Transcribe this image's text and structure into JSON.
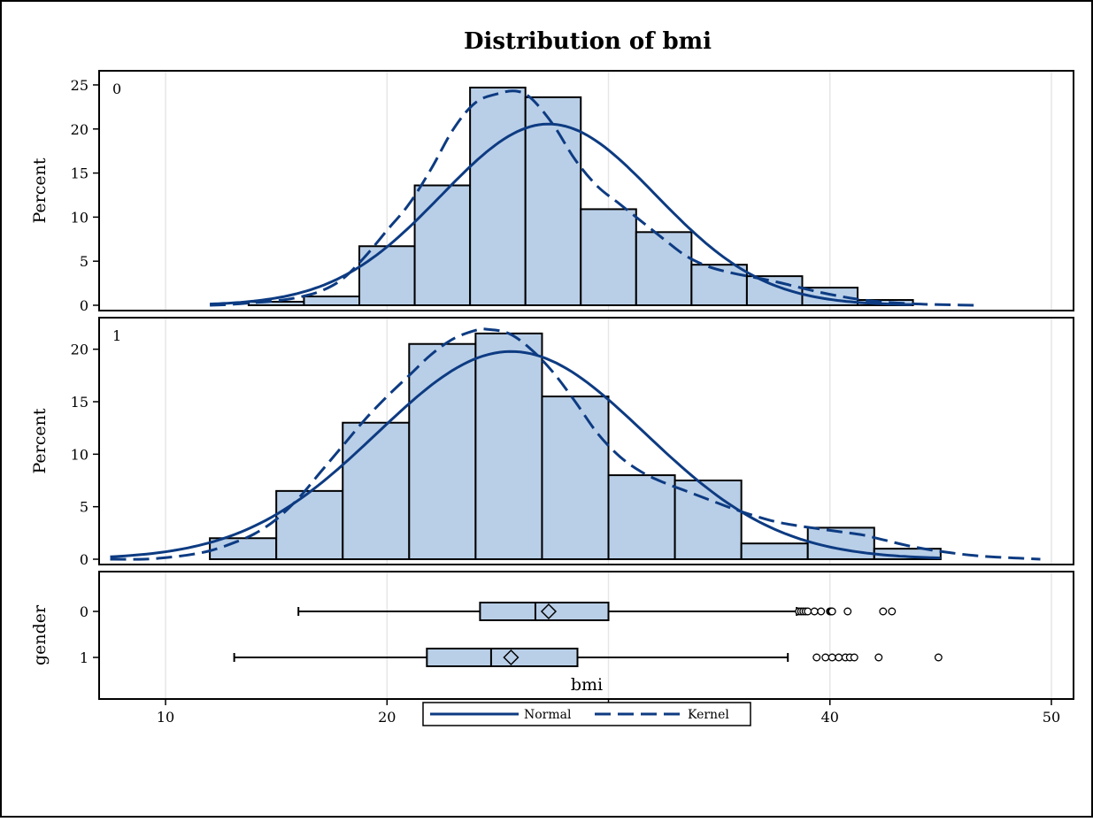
{
  "chart_data": {
    "type": "histogram",
    "title": "Distribution of bmi",
    "xlabel": "bmi",
    "xlim": [
      7,
      51
    ],
    "xticks": [
      10,
      20,
      30,
      40,
      50
    ],
    "colors": {
      "bar_fill": "#b9cfe8",
      "bar_edge": "#000000",
      "curve": "#0d3b82",
      "grid": "#e6e6e6"
    },
    "panels": [
      {
        "label": "0",
        "ylabel": "Percent",
        "ylim": [
          0,
          26
        ],
        "yticks": [
          0,
          5,
          10,
          15,
          20,
          25
        ],
        "bins": [
          {
            "x0": 13.75,
            "x1": 16.25,
            "value": 0.4
          },
          {
            "x0": 16.25,
            "x1": 18.75,
            "value": 1.0
          },
          {
            "x0": 18.75,
            "x1": 21.25,
            "value": 6.7
          },
          {
            "x0": 21.25,
            "x1": 23.75,
            "value": 13.6
          },
          {
            "x0": 23.75,
            "x1": 26.25,
            "value": 24.7
          },
          {
            "x0": 26.25,
            "x1": 28.75,
            "value": 23.6
          },
          {
            "x0": 28.75,
            "x1": 31.25,
            "value": 10.9
          },
          {
            "x0": 31.25,
            "x1": 33.75,
            "value": 8.3
          },
          {
            "x0": 33.75,
            "x1": 36.25,
            "value": 4.6
          },
          {
            "x0": 36.25,
            "x1": 38.75,
            "value": 3.3
          },
          {
            "x0": 38.75,
            "x1": 41.25,
            "value": 2.0
          },
          {
            "x0": 41.25,
            "x1": 43.75,
            "value": 0.6
          }
        ],
        "normal": {
          "mean": 27.3,
          "sd": 4.85,
          "bin_width": 2.5,
          "x_range": [
            12,
            43.7
          ]
        },
        "kernel": [
          [
            12,
            0
          ],
          [
            13,
            0.1
          ],
          [
            14,
            0.3
          ],
          [
            15,
            0.5
          ],
          [
            16,
            0.9
          ],
          [
            17,
            1.6
          ],
          [
            18,
            3.0
          ],
          [
            19,
            5.5
          ],
          [
            20,
            8.5
          ],
          [
            21,
            11.5
          ],
          [
            22,
            15.5
          ],
          [
            23,
            20.0
          ],
          [
            24,
            23.0
          ],
          [
            25,
            24.0
          ],
          [
            25.8,
            24.3
          ],
          [
            26.5,
            23.5
          ],
          [
            27.5,
            20.5
          ],
          [
            28.5,
            16.5
          ],
          [
            29.5,
            13.5
          ],
          [
            30.5,
            11.5
          ],
          [
            31.5,
            9.5
          ],
          [
            32.5,
            7.5
          ],
          [
            33.5,
            5.6
          ],
          [
            34.5,
            4.4
          ],
          [
            35.5,
            3.7
          ],
          [
            36.5,
            3.2
          ],
          [
            37.5,
            2.7
          ],
          [
            38.5,
            2.1
          ],
          [
            39.5,
            1.5
          ],
          [
            40.5,
            1.0
          ],
          [
            41.5,
            0.6
          ],
          [
            42.5,
            0.35
          ],
          [
            43.5,
            0.2
          ],
          [
            44.5,
            0.1
          ],
          [
            45.5,
            0.05
          ],
          [
            46.5,
            0
          ]
        ]
      },
      {
        "label": "1",
        "ylabel": "Percent",
        "ylim": [
          0,
          22.5
        ],
        "yticks": [
          0,
          5,
          10,
          15,
          20
        ],
        "bins": [
          {
            "x0": 12,
            "x1": 15,
            "value": 2.0
          },
          {
            "x0": 15,
            "x1": 18,
            "value": 6.5
          },
          {
            "x0": 18,
            "x1": 21,
            "value": 13.0
          },
          {
            "x0": 21,
            "x1": 24,
            "value": 20.5
          },
          {
            "x0": 24,
            "x1": 27,
            "value": 21.5
          },
          {
            "x0": 27,
            "x1": 30,
            "value": 15.5
          },
          {
            "x0": 30,
            "x1": 33,
            "value": 8.0
          },
          {
            "x0": 33,
            "x1": 36,
            "value": 7.5
          },
          {
            "x0": 36,
            "x1": 39,
            "value": 1.5
          },
          {
            "x0": 39,
            "x1": 42,
            "value": 3.0
          },
          {
            "x0": 42,
            "x1": 45,
            "value": 1.0
          }
        ],
        "normal": {
          "mean": 25.6,
          "sd": 6.05,
          "bin_width": 3.0,
          "x_range": [
            7.5,
            45
          ]
        },
        "kernel": [
          [
            7.5,
            0
          ],
          [
            9,
            0
          ],
          [
            10,
            0.15
          ],
          [
            11,
            0.4
          ],
          [
            12,
            0.8
          ],
          [
            13,
            1.5
          ],
          [
            14,
            2.4
          ],
          [
            15,
            3.8
          ],
          [
            16,
            5.8
          ],
          [
            17,
            8.3
          ],
          [
            18,
            10.8
          ],
          [
            19,
            13.3
          ],
          [
            20,
            15.5
          ],
          [
            21,
            17.5
          ],
          [
            22,
            19.5
          ],
          [
            23,
            21.0
          ],
          [
            24,
            21.8
          ],
          [
            24.5,
            21.9
          ],
          [
            25.5,
            21.5
          ],
          [
            26.5,
            20.0
          ],
          [
            27.5,
            17.8
          ],
          [
            28.5,
            15.0
          ],
          [
            29.5,
            12.0
          ],
          [
            30.5,
            9.8
          ],
          [
            31.5,
            8.3
          ],
          [
            32.5,
            7.3
          ],
          [
            33.5,
            6.5
          ],
          [
            34.5,
            5.7
          ],
          [
            35.5,
            4.9
          ],
          [
            36.5,
            4.2
          ],
          [
            37.5,
            3.6
          ],
          [
            38.5,
            3.2
          ],
          [
            39.5,
            2.9
          ],
          [
            40.5,
            2.6
          ],
          [
            41.5,
            2.3
          ],
          [
            42.5,
            1.8
          ],
          [
            43.5,
            1.3
          ],
          [
            44.5,
            0.9
          ],
          [
            45.5,
            0.6
          ],
          [
            46.5,
            0.35
          ],
          [
            47.5,
            0.2
          ],
          [
            48.5,
            0.1
          ],
          [
            49.5,
            0
          ]
        ]
      }
    ],
    "boxplot": {
      "ylabel": "gender",
      "categories": [
        {
          "label": "0",
          "whisker_low": 16.0,
          "q1": 24.2,
          "median": 26.7,
          "q3": 30.0,
          "whisker_high": 38.5,
          "mean": 27.3,
          "outliers": [
            38.6,
            38.7,
            38.8,
            38.9,
            39.0,
            39.3,
            39.6,
            40.0,
            40.05,
            40.1,
            40.8,
            42.4,
            42.8
          ]
        },
        {
          "label": "1",
          "whisker_low": 13.1,
          "q1": 21.8,
          "median": 24.7,
          "q3": 28.6,
          "whisker_high": 38.1,
          "mean": 25.6,
          "outliers": [
            39.4,
            39.8,
            40.1,
            40.4,
            40.7,
            40.9,
            41.1,
            42.2,
            44.9
          ]
        }
      ]
    },
    "legend": {
      "position": "bottom-center",
      "entries": [
        {
          "name": "Normal",
          "style": "solid"
        },
        {
          "name": "Kernel",
          "style": "dashed"
        }
      ]
    }
  }
}
